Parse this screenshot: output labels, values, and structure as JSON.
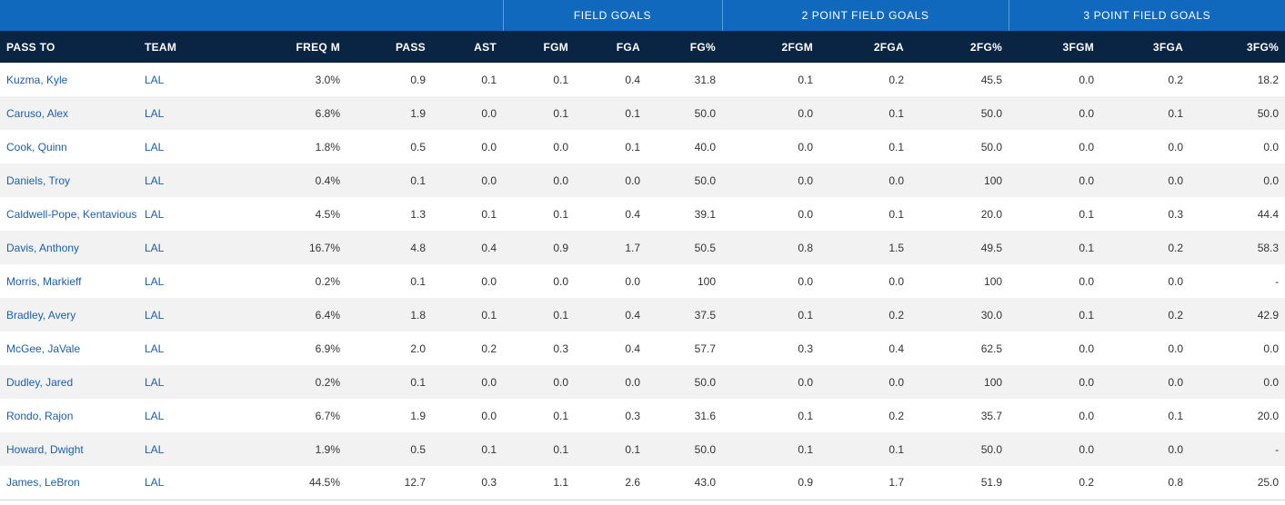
{
  "groups": {
    "field_goals": "FIELD GOALS",
    "two_point": "2 POINT FIELD GOALS",
    "three_point": "3 POINT FIELD GOALS"
  },
  "headers": [
    "PASS TO",
    "TEAM",
    "FREQ M",
    "PASS",
    "AST",
    "FGM",
    "FGA",
    "FG%",
    "2FGM",
    "2FGA",
    "2FG%",
    "3FGM",
    "3FGA",
    "3FG%"
  ],
  "rows": [
    [
      "Kuzma, Kyle",
      "LAL",
      "3.0%",
      "0.9",
      "0.1",
      "0.1",
      "0.4",
      "31.8",
      "0.1",
      "0.2",
      "45.5",
      "0.0",
      "0.2",
      "18.2"
    ],
    [
      "Caruso, Alex",
      "LAL",
      "6.8%",
      "1.9",
      "0.0",
      "0.1",
      "0.1",
      "50.0",
      "0.0",
      "0.1",
      "50.0",
      "0.0",
      "0.1",
      "50.0"
    ],
    [
      "Cook, Quinn",
      "LAL",
      "1.8%",
      "0.5",
      "0.0",
      "0.0",
      "0.1",
      "40.0",
      "0.0",
      "0.1",
      "50.0",
      "0.0",
      "0.0",
      "0.0"
    ],
    [
      "Daniels, Troy",
      "LAL",
      "0.4%",
      "0.1",
      "0.0",
      "0.0",
      "0.0",
      "50.0",
      "0.0",
      "0.0",
      "100",
      "0.0",
      "0.0",
      "0.0"
    ],
    [
      "Caldwell-Pope, Kentavious",
      "LAL",
      "4.5%",
      "1.3",
      "0.1",
      "0.1",
      "0.4",
      "39.1",
      "0.0",
      "0.1",
      "20.0",
      "0.1",
      "0.3",
      "44.4"
    ],
    [
      "Davis, Anthony",
      "LAL",
      "16.7%",
      "4.8",
      "0.4",
      "0.9",
      "1.7",
      "50.5",
      "0.8",
      "1.5",
      "49.5",
      "0.1",
      "0.2",
      "58.3"
    ],
    [
      "Morris, Markieff",
      "LAL",
      "0.2%",
      "0.1",
      "0.0",
      "0.0",
      "0.0",
      "100",
      "0.0",
      "0.0",
      "100",
      "0.0",
      "0.0",
      "-"
    ],
    [
      "Bradley, Avery",
      "LAL",
      "6.4%",
      "1.8",
      "0.1",
      "0.1",
      "0.4",
      "37.5",
      "0.1",
      "0.2",
      "30.0",
      "0.1",
      "0.2",
      "42.9"
    ],
    [
      "McGee, JaVale",
      "LAL",
      "6.9%",
      "2.0",
      "0.2",
      "0.3",
      "0.4",
      "57.7",
      "0.3",
      "0.4",
      "62.5",
      "0.0",
      "0.0",
      "0.0"
    ],
    [
      "Dudley, Jared",
      "LAL",
      "0.2%",
      "0.1",
      "0.0",
      "0.0",
      "0.0",
      "50.0",
      "0.0",
      "0.0",
      "100",
      "0.0",
      "0.0",
      "0.0"
    ],
    [
      "Rondo, Rajon",
      "LAL",
      "6.7%",
      "1.9",
      "0.0",
      "0.1",
      "0.3",
      "31.6",
      "0.1",
      "0.2",
      "35.7",
      "0.0",
      "0.1",
      "20.0"
    ],
    [
      "Howard, Dwight",
      "LAL",
      "1.9%",
      "0.5",
      "0.1",
      "0.1",
      "0.1",
      "50.0",
      "0.1",
      "0.1",
      "50.0",
      "0.0",
      "0.0",
      "-"
    ],
    [
      "James, LeBron",
      "LAL",
      "44.5%",
      "12.7",
      "0.3",
      "1.1",
      "2.6",
      "43.0",
      "0.9",
      "1.7",
      "51.9",
      "0.2",
      "0.8",
      "25.0"
    ]
  ],
  "colors": {
    "group_header_bg": "#1169be",
    "column_header_bg": "#0a2544",
    "link_text": "#1d5fa6",
    "stripe_bg": "#f2f2f2"
  }
}
